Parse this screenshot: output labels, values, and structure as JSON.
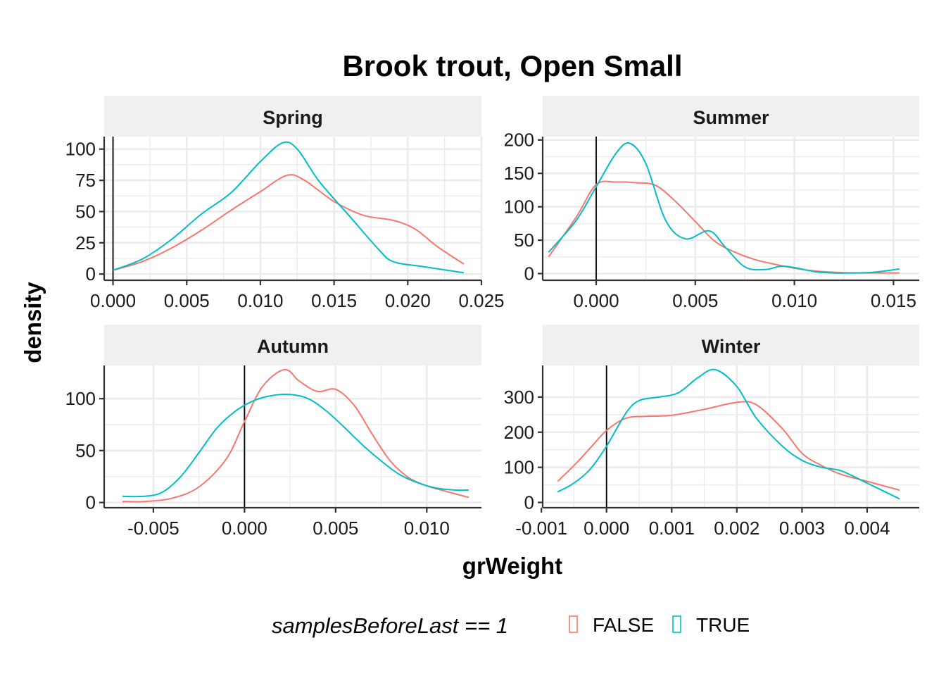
{
  "chart_data": {
    "type": "line",
    "title": "Brook trout, Open Small",
    "xlabel": "grWeight",
    "ylabel": "density",
    "grid": true,
    "legend": {
      "title": "samplesBeforeLast == 1",
      "position": "bottom",
      "entries": [
        {
          "label": "FALSE",
          "color": "#F8766D"
        },
        {
          "label": "TRUE",
          "color": "#00BFC4"
        }
      ]
    },
    "reference_line_x": 0,
    "colors": {
      "FALSE": "#F8766D",
      "TRUE": "#00BFC4",
      "strip": "#f0f0f0",
      "grid": "#ebebeb"
    },
    "panels": [
      {
        "strip": "Spring",
        "xlim": [
          -0.0006,
          0.025
        ],
        "ylim": [
          -5,
          110
        ],
        "x_ticks": [
          0,
          0.005,
          0.01,
          0.015,
          0.02,
          0.025
        ],
        "x_tick_labels": [
          "0.000",
          "0.005",
          "0.010",
          "0.015",
          "0.020",
          "0.025"
        ],
        "y_ticks": [
          0,
          25,
          50,
          75,
          100
        ],
        "y_tick_labels": [
          "0",
          "25",
          "50",
          "75",
          "100"
        ],
        "series": [
          {
            "name": "FALSE",
            "x": [
              0,
              0.002,
              0.004,
              0.006,
              0.008,
              0.01,
              0.0118,
              0.013,
              0.015,
              0.017,
              0.019,
              0.0205,
              0.022,
              0.0238
            ],
            "y": [
              3,
              10,
              21,
              35,
              51,
              66,
              79,
              75,
              58,
              47,
              43,
              36,
              22,
              8
            ]
          },
          {
            "name": "TRUE",
            "x": [
              0,
              0.002,
              0.004,
              0.006,
              0.008,
              0.01,
              0.0115,
              0.0125,
              0.014,
              0.016,
              0.018,
              0.019,
              0.021,
              0.0238
            ],
            "y": [
              3,
              12,
              28,
              48,
              65,
              90,
              105,
              100,
              74,
              47,
              20,
              10,
              6,
              1
            ]
          }
        ]
      },
      {
        "strip": "Summer",
        "xlim": [
          -0.0027,
          0.0163
        ],
        "ylim": [
          -10,
          205
        ],
        "x_ticks": [
          0,
          0.005,
          0.01,
          0.015
        ],
        "x_tick_labels": [
          "0.000",
          "0.005",
          "0.010",
          "0.015"
        ],
        "y_ticks": [
          0,
          50,
          100,
          150,
          200
        ],
        "y_tick_labels": [
          "0",
          "50",
          "100",
          "150",
          "200"
        ],
        "series": [
          {
            "name": "FALSE",
            "x": [
              -0.0024,
              -0.001,
              0,
              0.001,
              0.002,
              0.003,
              0.004,
              0.005,
              0.006,
              0.007,
              0.008,
              0.009,
              0.01,
              0.011,
              0.012,
              0.013,
              0.014,
              0.0153
            ],
            "y": [
              25,
              85,
              133,
              137,
              136,
              132,
              108,
              78,
              48,
              32,
              21,
              14,
              8,
              4,
              2,
              1,
              1,
              1
            ]
          },
          {
            "name": "TRUE",
            "x": [
              -0.0024,
              -0.001,
              0,
              0.001,
              0.0017,
              0.0025,
              0.0035,
              0.0045,
              0.0057,
              0.0065,
              0.0075,
              0.0085,
              0.0093,
              0.01,
              0.011,
              0.012,
              0.013,
              0.014,
              0.0153
            ],
            "y": [
              32,
              80,
              130,
              180,
              195,
              165,
              80,
              52,
              64,
              40,
              10,
              6,
              11,
              9,
              3,
              1,
              1,
              2,
              7
            ]
          }
        ]
      },
      {
        "strip": "Autumn",
        "xlim": [
          -0.0077,
          0.013
        ],
        "ylim": [
          -5,
          132
        ],
        "x_ticks": [
          -0.005,
          0,
          0.005,
          0.01
        ],
        "x_tick_labels": [
          "-0.005",
          "0.000",
          "0.005",
          "0.010"
        ],
        "y_ticks": [
          0,
          50,
          100
        ],
        "y_tick_labels": [
          "0",
          "50",
          "100"
        ],
        "series": [
          {
            "name": "FALSE",
            "x": [
              -0.0067,
              -0.0055,
              -0.004,
              -0.0025,
              -0.001,
              0,
              0.001,
              0.0022,
              0.003,
              0.004,
              0.005,
              0.006,
              0.007,
              0.008,
              0.009,
              0.01,
              0.011,
              0.0123
            ],
            "y": [
              1,
              1,
              4,
              15,
              42,
              78,
              112,
              128,
              117,
              107,
              109,
              94,
              66,
              40,
              24,
              16,
              11,
              5
            ]
          },
          {
            "name": "TRUE",
            "x": [
              -0.0067,
              -0.0055,
              -0.0045,
              -0.0035,
              -0.0025,
              -0.0015,
              -0.0005,
              0.0005,
              0.0015,
              0.0025,
              0.0035,
              0.0045,
              0.0055,
              0.0065,
              0.0075,
              0.0085,
              0.0095,
              0.0105,
              0.0115,
              0.0123
            ],
            "y": [
              6,
              6,
              10,
              25,
              48,
              72,
              88,
              98,
              103,
              104,
              100,
              88,
              72,
              55,
              40,
              27,
              19,
              14,
              12,
              12
            ]
          }
        ]
      },
      {
        "strip": "Winter",
        "xlim": [
          -0.00098,
          0.0048
        ],
        "ylim": [
          -15,
          390
        ],
        "x_ticks": [
          -0.001,
          0,
          0.001,
          0.002,
          0.003,
          0.004
        ],
        "x_tick_labels": [
          "-0.001",
          "0.000",
          "0.001",
          "0.002",
          "0.003",
          "0.004"
        ],
        "y_ticks": [
          0,
          100,
          200,
          300
        ],
        "y_tick_labels": [
          "0",
          "100",
          "200",
          "300"
        ],
        "series": [
          {
            "name": "FALSE",
            "x": [
              -0.00075,
              -0.0005,
              -0.00025,
              0,
              0.0003,
              0.0006,
              0.001,
              0.0015,
              0.002,
              0.0023,
              0.0027,
              0.003,
              0.0033,
              0.0036,
              0.004,
              0.0045
            ],
            "y": [
              60,
              105,
              155,
              205,
              240,
              245,
              248,
              265,
              285,
              278,
              210,
              140,
              105,
              80,
              60,
              35
            ]
          },
          {
            "name": "TRUE",
            "x": [
              -0.00075,
              -0.0005,
              -0.00025,
              0,
              0.0003,
              0.0005,
              0.0008,
              0.0011,
              0.0014,
              0.00167,
              0.002,
              0.0023,
              0.0027,
              0.003,
              0.0033,
              0.0036,
              0.004,
              0.0045
            ],
            "y": [
              30,
              55,
              95,
              160,
              255,
              290,
              300,
              312,
              355,
              378,
              330,
              240,
              160,
              120,
              100,
              90,
              55,
              10
            ]
          }
        ]
      }
    ]
  }
}
